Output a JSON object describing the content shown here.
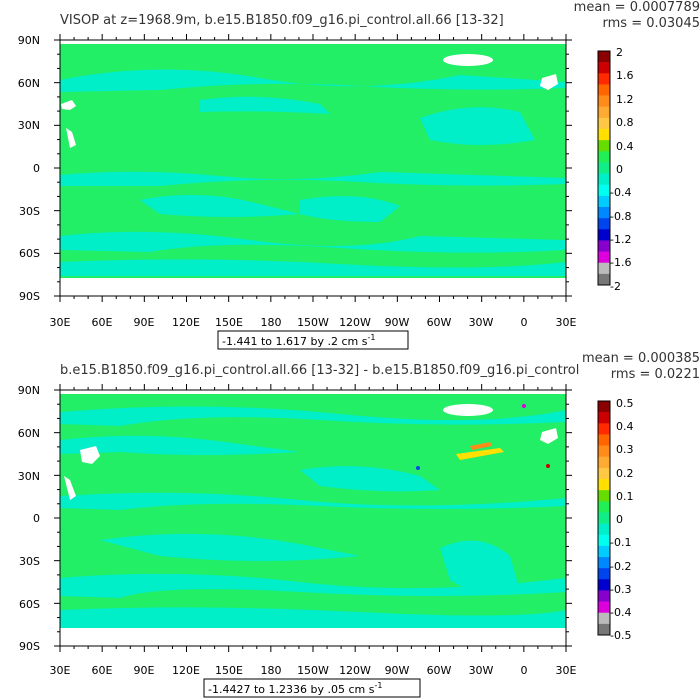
{
  "panels": [
    {
      "title": "VISOP at z=1968.9m, b.e15.B1850.f09_g16.pi_control.all.66 [13-32]",
      "mean": "mean = 0.0007789",
      "rms": "rms = 0.03045",
      "range_text": "-1.441 to 1.617 by .2 cm s",
      "range_exp": "-1",
      "lat_labels": [
        "90N",
        "60N",
        "30N",
        "0",
        "30S",
        "60S",
        "90S"
      ],
      "lon_labels": [
        "30E",
        "60E",
        "90E",
        "120E",
        "150E",
        "180",
        "150W",
        "120W",
        "90W",
        "60W",
        "30W",
        "0",
        "30E"
      ],
      "colorbar_labels": [
        "2",
        "1.6",
        "1.2",
        "0.8",
        "0.4",
        "0",
        "-0.4",
        "-0.8",
        "-1.2",
        "-1.6",
        "-2"
      ]
    },
    {
      "title": "b.e15.B1850.f09_g16.pi_control.all.66 [13-32] - b.e15.B1850.f09_g16.pi_control",
      "mean": "mean = 0.000385",
      "rms": "rms = 0.0221",
      "range_text": "-1.4427 to 1.2336 by .05 cm s",
      "range_exp": "-1",
      "lat_labels": [
        "90N",
        "60N",
        "30N",
        "0",
        "30S",
        "60S",
        "90S"
      ],
      "lon_labels": [
        "30E",
        "60E",
        "90E",
        "120E",
        "150E",
        "180",
        "150W",
        "120W",
        "90W",
        "60W",
        "30W",
        "0",
        "30E"
      ],
      "colorbar_labels": [
        "0.5",
        "0.4",
        "0.3",
        "0.2",
        "0.1",
        "0",
        "-0.1",
        "-0.2",
        "-0.3",
        "-0.4",
        "-0.5"
      ]
    }
  ],
  "colors": {
    "colorbar": [
      "#8b0000",
      "#cc0000",
      "#ff2a00",
      "#ff6600",
      "#ff8c1a",
      "#ffaa33",
      "#ffc844",
      "#ffe000",
      "#66dd00",
      "#22ee55",
      "#11ee88",
      "#00eec8",
      "#00ffee",
      "#00ccff",
      "#0088ff",
      "#0044ee",
      "#0000cc",
      "#8800cc",
      "#dd00dd",
      "#bbbbbb",
      "#777777"
    ],
    "ocean": "#22ee66",
    "anomaly": "#00eec8",
    "ice": "#ffffff"
  }
}
